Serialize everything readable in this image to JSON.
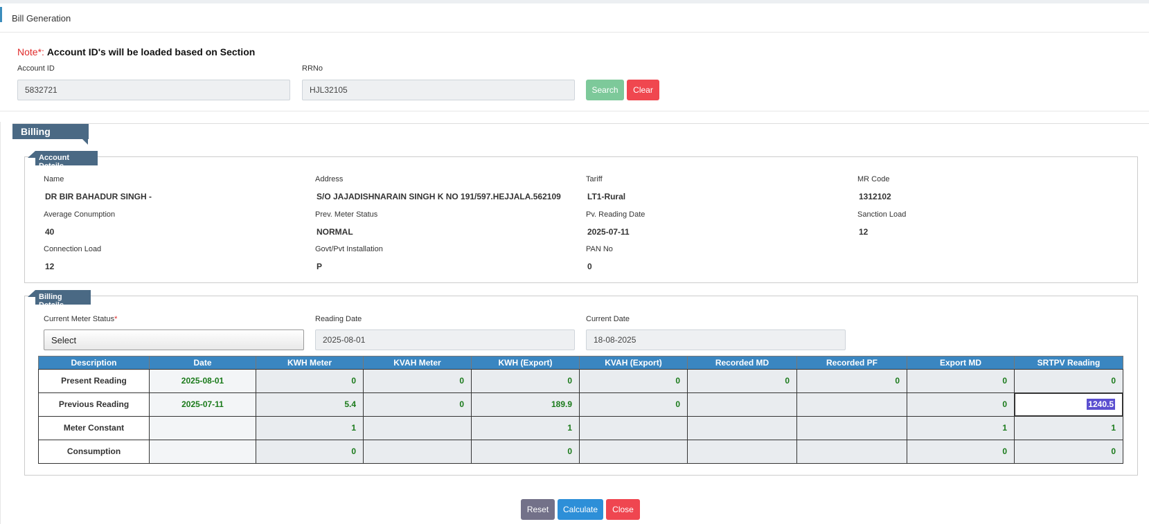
{
  "header": {
    "title": "Bill Generation"
  },
  "note": {
    "prefix": "Note*:",
    "text": "Account ID's will be loaded based on Section"
  },
  "search": {
    "fields": [
      {
        "label": "Account ID",
        "value": "5832721"
      },
      {
        "label": "RRNo",
        "value": "HJL32105"
      }
    ],
    "buttons": [
      "Search",
      "Clear"
    ]
  },
  "billing_tab": "Billing Details",
  "account_details": {
    "legend": "Account Details",
    "fields": [
      {
        "label": "Name",
        "value": "DR BIR BAHADUR SINGH -"
      },
      {
        "label": "Address",
        "value": "S/O JAJADISHNARAIN SINGH K NO 191/597.HEJJALA.562109"
      },
      {
        "label": "Tariff",
        "value": "LT1-Rural"
      },
      {
        "label": "MR Code",
        "value": "1312102"
      },
      {
        "label": "Average Conumption",
        "value": "40"
      },
      {
        "label": "Prev. Meter Status",
        "value": "NORMAL"
      },
      {
        "label": "Pv. Reading Date",
        "value": "2025-07-11"
      },
      {
        "label": "Sanction Load",
        "value": "12"
      },
      {
        "label": "Connection Load",
        "value": "12"
      },
      {
        "label": "Govt/Pvt Installation",
        "value": "P"
      },
      {
        "label": "PAN No",
        "value": "0"
      }
    ]
  },
  "billing_details": {
    "legend": "Billing Details",
    "fields": [
      {
        "label": "Current Meter Status",
        "required": "*",
        "value": "Select"
      },
      {
        "label": "Reading Date",
        "value": "2025-08-01"
      },
      {
        "label": "Current Date",
        "value": "18-08-2025"
      }
    ],
    "table": {
      "columns": [
        "Description",
        "Date",
        "KWH Meter",
        "KVAH Meter",
        "KWH (Export)",
        "KVAH (Export)",
        "Recorded MD",
        "Recorded PF",
        "Export MD",
        "SRTPV Reading"
      ],
      "rows": [
        [
          "Present Reading",
          "2025-08-01",
          "0",
          "0",
          "0",
          "0",
          "0",
          "0",
          "0",
          "0"
        ],
        [
          "Previous Reading",
          "2025-07-11",
          "5.4",
          "0",
          "189.9",
          "0",
          null,
          null,
          "0",
          "1240.5"
        ],
        [
          "Meter Constant",
          null,
          "1",
          null,
          "1",
          null,
          null,
          null,
          "1",
          "1"
        ],
        [
          "Consumption",
          null,
          "0",
          null,
          "0",
          null,
          null,
          null,
          "0",
          "0"
        ]
      ]
    }
  },
  "actions": [
    "Reset",
    "Calculate",
    "Close"
  ]
}
